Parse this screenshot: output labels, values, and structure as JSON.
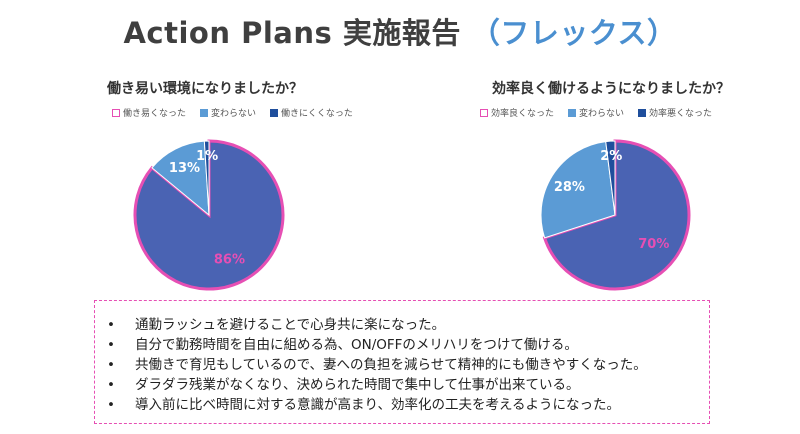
{
  "header": {
    "title": "Action Plans 実施報告",
    "subtitle": "（フレックス）"
  },
  "chart_data": [
    {
      "type": "pie",
      "title": "働き易い環境になりましたか？",
      "categories": [
        "働き易くなった",
        "変わらない",
        "働きにくくなった"
      ],
      "values": [
        86,
        13,
        1
      ],
      "labels": [
        "86%",
        "13%",
        "1%"
      ],
      "colors": [
        "#4a63b3",
        "#5b9bd5",
        "#1f4e9c"
      ],
      "highlight_color": "#e64fb4",
      "label_colors": [
        "#e64fb4",
        "#ffffff",
        "#ffffff"
      ],
      "legend": "top"
    },
    {
      "type": "pie",
      "title": "効率良く働けるようになりましたか？",
      "categories": [
        "効率良くなった",
        "変わらない",
        "効率悪くなった"
      ],
      "values": [
        70,
        28,
        2
      ],
      "labels": [
        "70%",
        "28%",
        "2%"
      ],
      "colors": [
        "#4a63b3",
        "#5b9bd5",
        "#1f4e9c"
      ],
      "highlight_color": "#e64fb4",
      "label_colors": [
        "#e64fb4",
        "#ffffff",
        "#ffffff"
      ],
      "legend": "top"
    }
  ],
  "comments": {
    "bullet": "•",
    "items": [
      "通勤ラッシュを避けることで心身共に楽になった。",
      "自分で勤務時間を自由に組める為、ON/OFFのメリハリをつけて働ける。",
      "共働きで育児もしているので、妻への負担を減らせて精神的にも働きやすくなった。",
      "ダラダラ残業がなくなり、決められた時間で集中して仕事が出来ている。",
      "導入前に比べ時間に対する意識が高まり、効率化の工夫を考えるようになった。"
    ]
  }
}
